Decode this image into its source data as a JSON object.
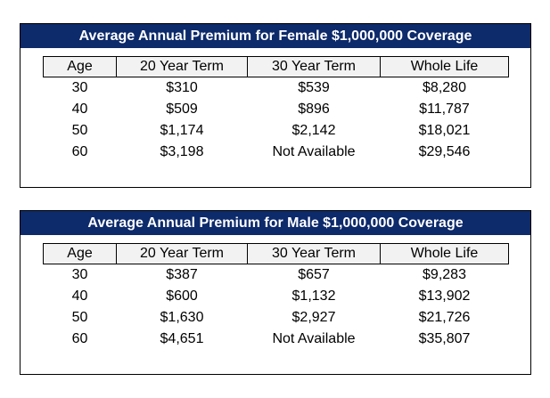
{
  "female": {
    "title": "Average Annual Premium for Female $1,000,000 Coverage",
    "headers": [
      "Age",
      "20 Year Term",
      "30 Year Term",
      "Whole Life"
    ],
    "rows": [
      [
        "30",
        "$310",
        "$539",
        "$8,280"
      ],
      [
        "40",
        "$509",
        "$896",
        "$11,787"
      ],
      [
        "50",
        "$1,174",
        "$2,142",
        "$18,021"
      ],
      [
        "60",
        "$3,198",
        "Not Available",
        "$29,546"
      ]
    ]
  },
  "male": {
    "title": "Average Annual Premium for Male $1,000,000 Coverage",
    "headers": [
      "Age",
      "20 Year Term",
      "30 Year Term",
      "Whole Life"
    ],
    "rows": [
      [
        "30",
        "$387",
        "$657",
        "$9,283"
      ],
      [
        "40",
        "$600",
        "$1,132",
        "$13,902"
      ],
      [
        "50",
        "$1,630",
        "$2,927",
        "$21,726"
      ],
      [
        "60",
        "$4,651",
        "Not Available",
        "$35,807"
      ]
    ]
  },
  "colors": {
    "banner_bg": "#0d2a6b",
    "banner_text": "#ffffff",
    "header_bg": "#f2f2f2"
  }
}
